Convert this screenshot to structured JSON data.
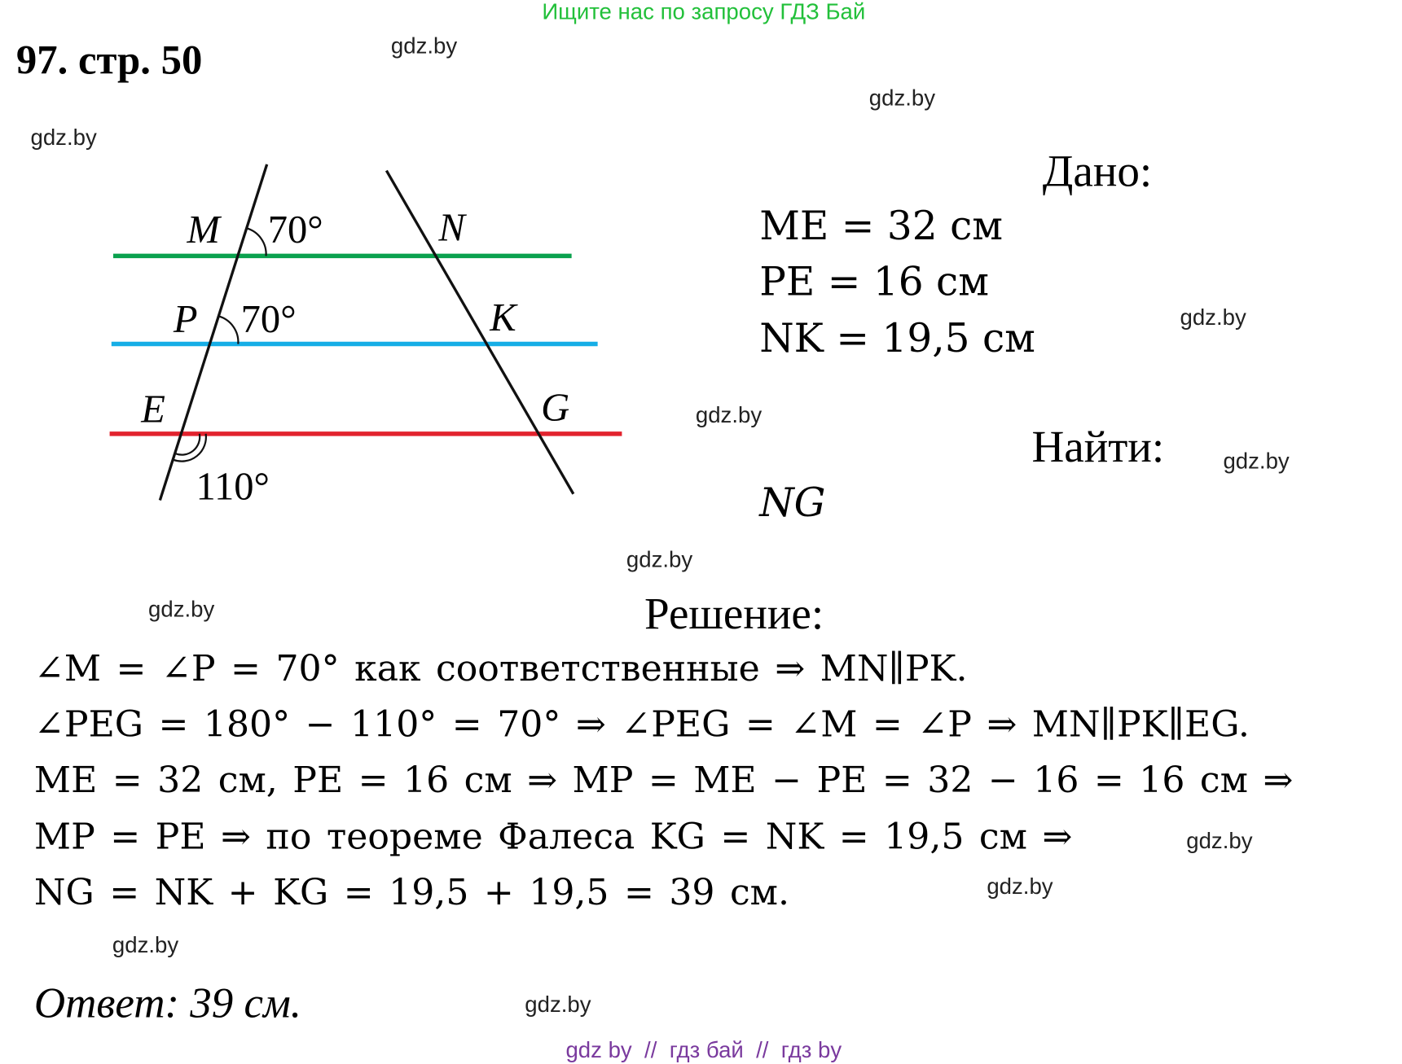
{
  "header": {
    "search_hint": "Ищите нас по запросу ГДЗ Бай",
    "title": "97. стр. 50"
  },
  "watermarks": [
    "gdz.by",
    "gdz.by",
    "gdz.by",
    "gdz.by",
    "gdz.by",
    "gdz.by",
    "gdz.by",
    "gdz.by",
    "gdz.by",
    "gdz.by",
    "gdz.by",
    "gdz.by"
  ],
  "diagram": {
    "points": {
      "M": "M",
      "N": "N",
      "P": "P",
      "K": "K",
      "E": "E",
      "G": "G"
    },
    "angle_m": "70°",
    "angle_p": "70°",
    "angle_e": "110°",
    "colors": {
      "line_mn": "#0aa14e",
      "line_pk": "#16aee6",
      "line_eg": "#e2232e"
    }
  },
  "given": {
    "heading": "Дано:",
    "items": [
      "ME = 32 см",
      "PE = 16 см",
      "NK = 19,5 см"
    ]
  },
  "find": {
    "heading": "Найти:",
    "value": "NG"
  },
  "solution": {
    "heading": "Решение:",
    "lines": [
      "∠M = ∠P = 70° как соответственные ⇒ MN∥PK.",
      "∠PEG = 180° − 110° = 70° ⇒ ∠PEG = ∠M = ∠P ⇒ MN∥PK∥EG.",
      "ME = 32 см, PE = 16 см ⇒ MP = ME − PE = 32 − 16 = 16 см ⇒",
      "MP = PE ⇒ по теореме Фалеса KG = NK = 19,5 см ⇒",
      "NG = NK + KG = 19,5 + 19,5 = 39 см."
    ],
    "answer": "Ответ: 39 см."
  },
  "footer": {
    "text": "gdz by  //  гдз бай  //  гдз by"
  },
  "colors": {
    "hint": "#22c03a",
    "footer": "#7a3a9e"
  }
}
